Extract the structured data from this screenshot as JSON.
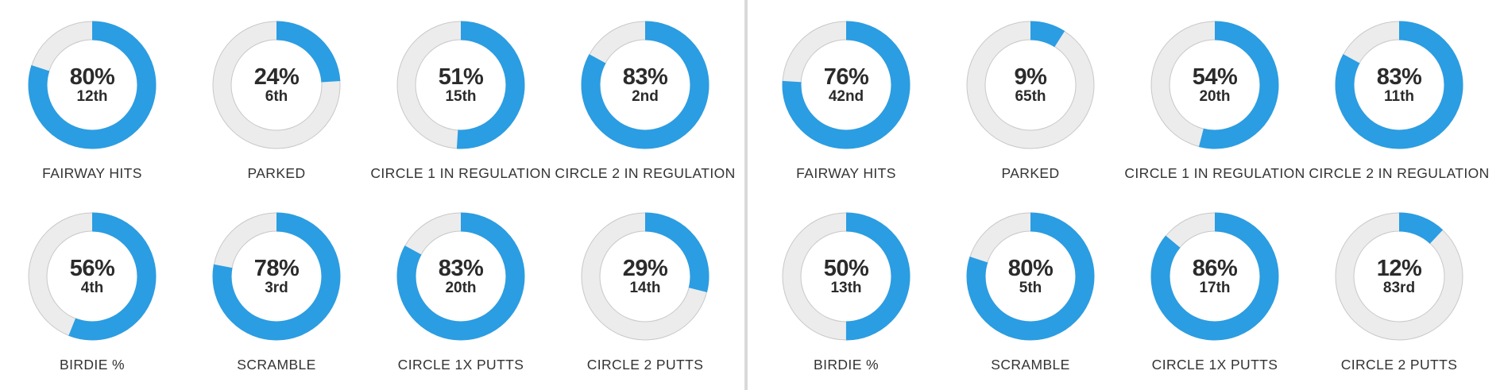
{
  "colors": {
    "fill": "#2b9de2",
    "track": "#ececec",
    "track_border": "#c8c8c8",
    "divider": "#d9d9d9"
  },
  "panels": [
    {
      "stats": [
        {
          "percent": "80%",
          "value": 80,
          "rank": "12th",
          "label": "FAIRWAY HITS"
        },
        {
          "percent": "24%",
          "value": 24,
          "rank": "6th",
          "label": "PARKED"
        },
        {
          "percent": "51%",
          "value": 51,
          "rank": "15th",
          "label": "CIRCLE 1 IN REGULATION"
        },
        {
          "percent": "83%",
          "value": 83,
          "rank": "2nd",
          "label": "CIRCLE 2 IN REGULATION"
        },
        {
          "percent": "56%",
          "value": 56,
          "rank": "4th",
          "label": "BIRDIE %"
        },
        {
          "percent": "78%",
          "value": 78,
          "rank": "3rd",
          "label": "SCRAMBLE"
        },
        {
          "percent": "83%",
          "value": 83,
          "rank": "20th",
          "label": "CIRCLE 1X PUTTS"
        },
        {
          "percent": "29%",
          "value": 29,
          "rank": "14th",
          "label": "CIRCLE 2 PUTTS"
        }
      ]
    },
    {
      "stats": [
        {
          "percent": "76%",
          "value": 76,
          "rank": "42nd",
          "label": "FAIRWAY HITS"
        },
        {
          "percent": "9%",
          "value": 9,
          "rank": "65th",
          "label": "PARKED"
        },
        {
          "percent": "54%",
          "value": 54,
          "rank": "20th",
          "label": "CIRCLE 1 IN REGULATION"
        },
        {
          "percent": "83%",
          "value": 83,
          "rank": "11th",
          "label": "CIRCLE 2 IN REGULATION"
        },
        {
          "percent": "50%",
          "value": 50,
          "rank": "13th",
          "label": "BIRDIE %"
        },
        {
          "percent": "80%",
          "value": 80,
          "rank": "5th",
          "label": "SCRAMBLE"
        },
        {
          "percent": "86%",
          "value": 86,
          "rank": "17th",
          "label": "CIRCLE 1X PUTTS"
        },
        {
          "percent": "12%",
          "value": 12,
          "rank": "83rd",
          "label": "CIRCLE 2 PUTTS"
        }
      ]
    }
  ]
}
